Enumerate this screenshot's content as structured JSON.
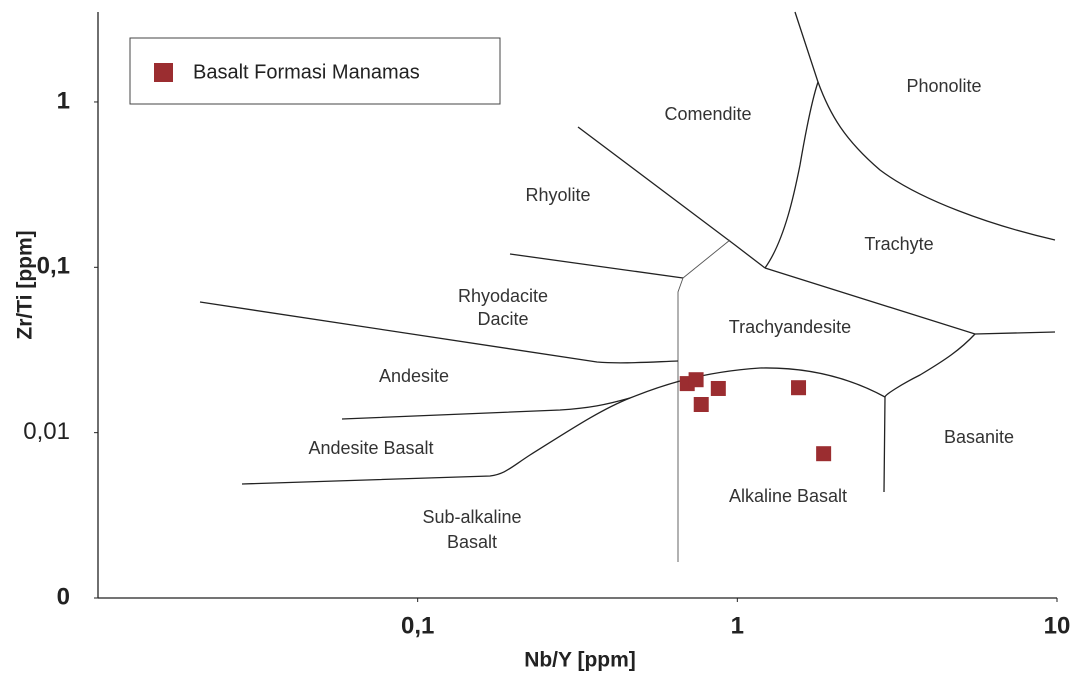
{
  "chart_data": {
    "type": "scatter",
    "x_label": "Nb/Y  [ppm]",
    "y_label": "Zr/Ti  [ppm]",
    "log_x": true,
    "log_y": true,
    "xlim": [
      0.01,
      10
    ],
    "ylim": [
      0.001,
      3.5
    ],
    "xticks": [
      {
        "value": 0.1,
        "label": "0,1"
      },
      1,
      10
    ],
    "yticks": [
      {
        "value": 0.001,
        "label": "0"
      },
      {
        "value": 0.01,
        "label": "0,01"
      },
      {
        "value": 0.1,
        "label": "0,1"
      },
      1
    ],
    "legend": "top-left",
    "series": [
      {
        "name": "Basalt Formasi Manamas",
        "color": "#9b2d30",
        "x": [
          0.697,
          0.743,
          0.771,
          0.872,
          1.554,
          1.862
        ],
        "values": [
          0.0198,
          0.0209,
          0.0148,
          0.0185,
          0.0187,
          0.00746
        ]
      }
    ],
    "annotations": [
      "Comendite",
      "Phonolite",
      "Rhyolite",
      "Trachyte",
      "Rhyodacite",
      "Dacite",
      "Trachyandesite",
      "Andesite",
      "Andesite Basalt",
      "Basanite",
      "Alkaline Basalt",
      "Sub-alkaline",
      "Basalt"
    ]
  }
}
